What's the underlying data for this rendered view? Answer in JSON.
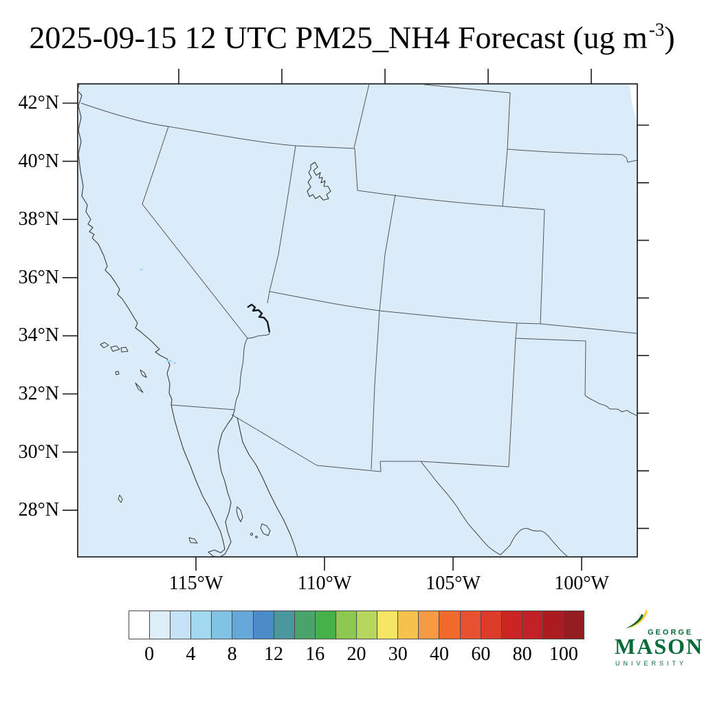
{
  "title": {
    "prefix": "2025-09-15 12 UTC PM25_NH4 Forecast (ug m",
    "superscript": "-3",
    "suffix": ")"
  },
  "map": {
    "lat_tick_labels": [
      "42°N",
      "40°N",
      "38°N",
      "36°N",
      "34°N",
      "32°N",
      "30°N",
      "28°N"
    ],
    "lon_tick_labels": [
      "115°W",
      "110°W",
      "105°W",
      "100°W"
    ],
    "background_color": "#dbecf8",
    "border_color": "#4b5763"
  },
  "chart_data": {
    "type": "heatmap",
    "title": "2025-09-15 12 UTC PM25_NH4 Forecast (ug m-3)",
    "region": "Southwestern United States and northern Mexico",
    "lat_range_deg_n": [
      28,
      42
    ],
    "lon_range_deg_w": [
      100,
      115
    ],
    "field_note": "entire displayed field is in the 0-2 ug m-3 bin (uniform pale blue)",
    "colorbar": {
      "tick_labels": [
        "0",
        "4",
        "8",
        "12",
        "16",
        "20",
        "30",
        "40",
        "60",
        "80",
        "100"
      ],
      "segment_colors": [
        "#ffffff",
        "#ddeef9",
        "#c4e4f5",
        "#a3d9f0",
        "#82c3e4",
        "#64a8d8",
        "#4b8bc9",
        "#4b97a0",
        "#4ba36c",
        "#47b048",
        "#8cc84e",
        "#b7d75c",
        "#f5e566",
        "#f6c14d",
        "#f79a42",
        "#f2692e",
        "#e8512f",
        "#dc3b2c",
        "#cc2424",
        "#c12126",
        "#ab1c20",
        "#931d20"
      ]
    }
  },
  "logo": {
    "top": "GEORGE",
    "main": "MASON",
    "bottom": "UNIVERSITY",
    "green": "#046A38",
    "gold": "#FFC72C"
  }
}
